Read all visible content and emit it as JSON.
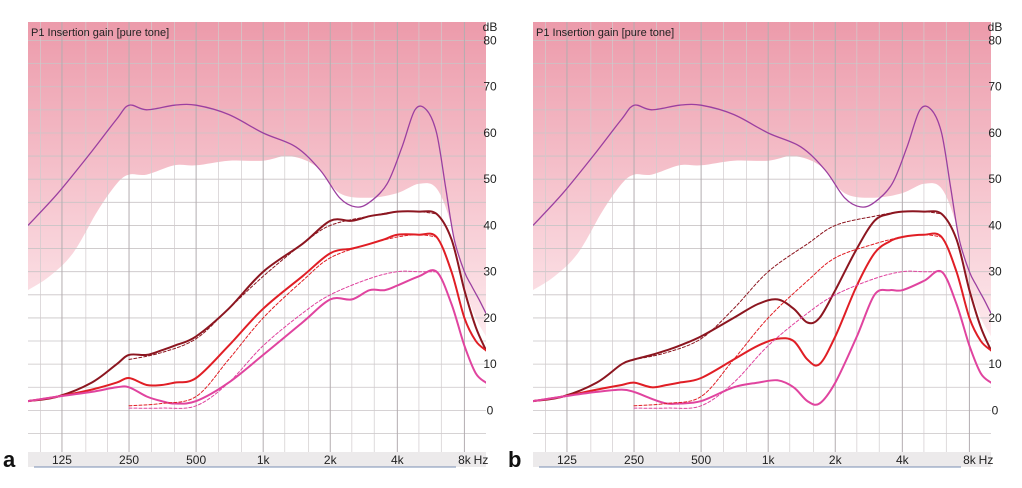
{
  "panels": [
    {
      "letter": "a"
    },
    {
      "letter": "b"
    }
  ],
  "chart_data": [
    {
      "type": "line",
      "title": "P1 Insertion gain [pure tone]",
      "x_unit": "Hz",
      "y_unit": "dB",
      "x_ticks": [
        "125",
        "250",
        "500",
        "1k",
        "2k",
        "4k",
        "8k"
      ],
      "y_ticks": [
        0,
        10,
        20,
        30,
        40,
        50,
        60,
        70,
        80
      ],
      "ylim": [
        -9,
        84
      ],
      "xscale": "log",
      "grid": true,
      "colors": {
        "top_region": "#ec9aaa",
        "max_gain": "#9b3fa0",
        "loud": "#8c1620",
        "medium": "#e01e25",
        "soft": "#e0449f"
      },
      "max_gain_curve": {
        "x": [
          88,
          120,
          170,
          220,
          250,
          300,
          400,
          500,
          700,
          1000,
          1400,
          1800,
          2200,
          2600,
          3000,
          3600,
          4200,
          4800,
          5400,
          6000,
          6600,
          7200,
          8000,
          8600,
          9300,
          10000
        ],
        "y": [
          40,
          47,
          56,
          63,
          66,
          65,
          66,
          66,
          64,
          60,
          57,
          52,
          46,
          44,
          45,
          49,
          57,
          65,
          65,
          60,
          48,
          37,
          30,
          27,
          24,
          21
        ]
      },
      "achievable_boundary": {
        "x": [
          88,
          110,
          140,
          180,
          220,
          250,
          300,
          400,
          500,
          700,
          1000,
          1300,
          1700,
          2200,
          3000,
          4000,
          5000,
          6000,
          7000,
          8000,
          9000,
          10000
        ],
        "y": [
          26,
          29,
          34,
          43,
          49,
          51,
          51,
          53,
          53,
          54,
          54,
          55,
          53,
          47,
          46,
          47,
          49,
          48,
          40,
          27,
          20,
          16
        ]
      },
      "series": [
        {
          "style": "solid",
          "x": [
            88,
            120,
            170,
            220,
            250,
            300,
            350,
            400,
            500,
            700,
            1000,
            1500,
            2000,
            2500,
            3000,
            3500,
            4000,
            5000,
            6000,
            7000,
            8000,
            9000,
            10000
          ],
          "y": [
            2,
            3,
            6,
            10,
            12,
            12,
            13,
            14,
            16,
            22,
            30,
            36,
            41,
            41,
            42,
            42.5,
            43,
            43,
            42.5,
            37,
            26,
            18,
            13
          ]
        },
        {
          "style": "solid",
          "x": [
            88,
            120,
            170,
            220,
            250,
            300,
            350,
            400,
            500,
            700,
            1000,
            1500,
            2000,
            2500,
            3000,
            3500,
            4000,
            5000,
            6000,
            7000,
            8000,
            9000,
            10000
          ],
          "y": [
            2,
            3,
            4.5,
            6,
            7,
            5.5,
            5.5,
            6,
            7,
            14,
            22,
            29,
            34,
            35,
            36,
            37,
            38,
            38,
            37.5,
            30,
            20,
            15,
            13
          ]
        },
        {
          "style": "solid",
          "x": [
            88,
            120,
            170,
            220,
            250,
            300,
            350,
            400,
            500,
            700,
            1000,
            1500,
            2000,
            2500,
            3000,
            3500,
            4000,
            5000,
            6000,
            7000,
            8000,
            9000,
            10000
          ],
          "y": [
            2,
            3,
            4,
            5,
            5,
            3,
            2,
            1.5,
            2,
            6,
            12,
            19,
            24,
            24,
            26,
            26,
            27,
            29,
            30,
            23,
            14,
            8,
            6
          ]
        },
        {
          "style": "dashed",
          "x": [
            250,
            350,
            500,
            700,
            1000,
            1500,
            2000,
            3000,
            4000,
            5000,
            6000
          ],
          "y": [
            11,
            12.5,
            15.5,
            22,
            29,
            36,
            40,
            42,
            43,
            43,
            42.5
          ]
        },
        {
          "style": "dashed",
          "x": [
            250,
            350,
            500,
            700,
            1000,
            1500,
            2000,
            3000,
            4000,
            5000,
            6000
          ],
          "y": [
            1,
            1.5,
            3,
            11,
            20,
            28,
            33,
            36,
            37.5,
            38,
            37.5
          ]
        },
        {
          "style": "dashed",
          "x": [
            250,
            350,
            500,
            700,
            1000,
            1500,
            2000,
            3000,
            4000,
            5000,
            6000
          ],
          "y": [
            0.5,
            0.5,
            1,
            6,
            14,
            21,
            25,
            28.5,
            30,
            30,
            30
          ]
        }
      ]
    },
    {
      "type": "line",
      "title": "P1 Insertion gain [pure tone]",
      "x_unit": "Hz",
      "y_unit": "dB",
      "x_ticks": [
        "125",
        "250",
        "500",
        "1k",
        "2k",
        "4k",
        "8k"
      ],
      "y_ticks": [
        0,
        10,
        20,
        30,
        40,
        50,
        60,
        70,
        80
      ],
      "ylim": [
        -9,
        84
      ],
      "xscale": "log",
      "grid": true,
      "colors": {
        "top_region": "#ec9aaa",
        "max_gain": "#9b3fa0",
        "loud": "#8c1620",
        "medium": "#e01e25",
        "soft": "#e0449f"
      },
      "max_gain_curve": {
        "x": [
          88,
          120,
          170,
          220,
          250,
          300,
          400,
          500,
          700,
          1000,
          1400,
          1800,
          2200,
          2600,
          3000,
          3600,
          4200,
          4800,
          5400,
          6000,
          6600,
          7200,
          8000,
          8600,
          9300,
          10000
        ],
        "y": [
          40,
          47,
          56,
          63,
          66,
          65,
          66,
          66,
          64,
          60,
          57,
          52,
          46,
          44,
          45,
          49,
          57,
          65,
          65,
          60,
          48,
          37,
          30,
          27,
          24,
          21
        ]
      },
      "achievable_boundary": {
        "x": [
          88,
          110,
          140,
          180,
          220,
          250,
          300,
          400,
          500,
          700,
          1000,
          1300,
          1700,
          2200,
          3000,
          4000,
          5000,
          6000,
          7000,
          8000,
          9000,
          10000
        ],
        "y": [
          26,
          29,
          34,
          43,
          49,
          51,
          51,
          53,
          53,
          54,
          54,
          55,
          53,
          47,
          46,
          47,
          49,
          48,
          40,
          27,
          20,
          16
        ]
      },
      "series": [
        {
          "style": "solid",
          "x": [
            88,
            120,
            170,
            220,
            250,
            300,
            350,
            400,
            500,
            700,
            900,
            1100,
            1300,
            1500,
            1700,
            2000,
            2500,
            3000,
            3500,
            4000,
            5000,
            6000,
            7000,
            8000,
            9000,
            10000
          ],
          "y": [
            2,
            3,
            6,
            10,
            11,
            12,
            13,
            14,
            16,
            20,
            23,
            24,
            22,
            19,
            20,
            26,
            35,
            41,
            42.5,
            43,
            43,
            42.5,
            37,
            26,
            18,
            13
          ]
        },
        {
          "style": "solid",
          "x": [
            88,
            120,
            170,
            220,
            250,
            300,
            350,
            400,
            500,
            700,
            900,
            1100,
            1300,
            1500,
            1700,
            2000,
            2500,
            3000,
            3500,
            4000,
            5000,
            6000,
            7000,
            8000,
            9000,
            10000
          ],
          "y": [
            2,
            3,
            4.5,
            5.5,
            6,
            5,
            5.5,
            6,
            7,
            11,
            14,
            15.5,
            15,
            11,
            10,
            16,
            27,
            34,
            36.5,
            37.5,
            38,
            37.5,
            30,
            20,
            15,
            13
          ]
        },
        {
          "style": "solid",
          "x": [
            88,
            120,
            170,
            220,
            250,
            300,
            350,
            400,
            500,
            700,
            900,
            1100,
            1300,
            1500,
            1700,
            2000,
            2500,
            3000,
            3500,
            4000,
            5000,
            6000,
            7000,
            8000,
            9000,
            10000
          ],
          "y": [
            2,
            3,
            4,
            4.5,
            4,
            2.5,
            1.5,
            1.5,
            2,
            5,
            6,
            6.5,
            5,
            2,
            1.5,
            6,
            16,
            25,
            26,
            26,
            28,
            30,
            23,
            14,
            8,
            6
          ]
        },
        {
          "style": "dashed",
          "x": [
            250,
            350,
            500,
            700,
            1000,
            1500,
            2000,
            3000,
            4000,
            5000,
            6000
          ],
          "y": [
            11,
            12.5,
            15.5,
            22,
            30,
            36,
            40,
            42,
            43,
            43,
            42.5
          ]
        },
        {
          "style": "dashed",
          "x": [
            250,
            350,
            500,
            700,
            1000,
            1500,
            2000,
            3000,
            4000,
            5000,
            6000
          ],
          "y": [
            1,
            1.5,
            3,
            11,
            20,
            28,
            33,
            36,
            37.5,
            38,
            37.5
          ]
        },
        {
          "style": "dashed",
          "x": [
            250,
            350,
            500,
            700,
            1000,
            1500,
            2000,
            3000,
            4000,
            5000,
            6000
          ],
          "y": [
            0.5,
            0.5,
            1,
            6,
            14,
            21,
            25,
            28.5,
            30,
            30,
            30
          ]
        }
      ]
    }
  ]
}
